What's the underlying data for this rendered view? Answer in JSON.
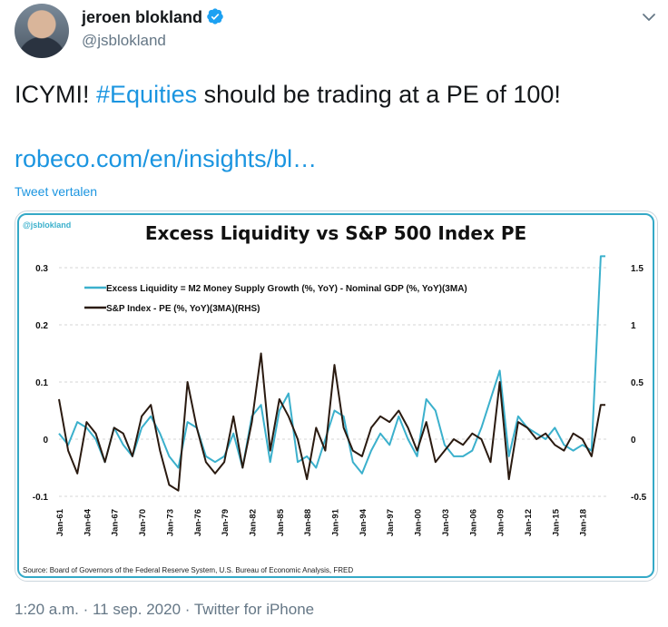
{
  "author": {
    "name": "jeroen blokland",
    "handle": "@jsblokland",
    "avatar_icon": "profile-photo",
    "verified_color": "#1da1f2"
  },
  "tweet": {
    "text_prefix": "ICYMI! ",
    "hashtag": "#Equities",
    "text_suffix": " should be trading at a PE of 100!",
    "link": "robeco.com/en/insights/bl…",
    "translate_label": "Tweet vertalen"
  },
  "meta": {
    "time": "1:20 a.m.",
    "separator1": " · ",
    "date": "11 sep. 2020",
    "separator2": " · ",
    "app": "Twitter for iPhone"
  },
  "chart_data": {
    "type": "line",
    "title": "Excess Liquidity vs S&P 500 Index PE",
    "watermark": "@jsblokland",
    "source": "Source: Board of Governors of the Federal Reserve System, U.S. Bureau of Economic Analysis, FRED",
    "x_ticks": [
      "Jan-61",
      "Jan-64",
      "Jan-67",
      "Jan-70",
      "Jan-73",
      "Jan-76",
      "Jan-79",
      "Jan-82",
      "Jan-85",
      "Jan-88",
      "Jan-91",
      "Jan-94",
      "Jan-97",
      "Jan-00",
      "Jan-03",
      "Jan-06",
      "Jan-09",
      "Jan-12",
      "Jan-15",
      "Jan-18"
    ],
    "x_range": [
      1961,
      2020.7
    ],
    "y_left": {
      "ticks": [
        "0.3",
        "0.2",
        "0.1",
        "0",
        "-0.1"
      ],
      "tick_values": [
        0.3,
        0.2,
        0.1,
        0,
        -0.1
      ],
      "range": [
        -0.1,
        0.3
      ]
    },
    "y_right": {
      "ticks": [
        "1.5",
        "1",
        "0.5",
        "0",
        "-0.5"
      ],
      "tick_values": [
        1.5,
        1,
        0.5,
        0,
        -0.5
      ],
      "range": [
        -0.5,
        1.5
      ]
    },
    "grid": "horizontal-dashed",
    "legend_position": "top-left",
    "series": [
      {
        "name": "Excess Liquidity = M2 Money Supply Growth (%, YoY) - Nominal GDP (%, YoY)(3MA)",
        "axis": "left",
        "color": "#3bb0cc",
        "x": [
          1961,
          1962,
          1963,
          1964,
          1965,
          1966,
          1967,
          1968,
          1969,
          1970,
          1971,
          1972,
          1973,
          1974,
          1975,
          1976,
          1977,
          1978,
          1979,
          1980,
          1981,
          1982,
          1983,
          1984,
          1985,
          1986,
          1987,
          1988,
          1989,
          1990,
          1991,
          1992,
          1993,
          1994,
          1995,
          1996,
          1997,
          1998,
          1999,
          2000,
          2001,
          2002,
          2003,
          2004,
          2005,
          2006,
          2007,
          2008,
          2009,
          2010,
          2011,
          2012,
          2013,
          2014,
          2015,
          2016,
          2017,
          2018,
          2019,
          2020,
          2020.5
        ],
        "y": [
          0.01,
          -0.01,
          0.03,
          0.02,
          0.0,
          -0.04,
          0.02,
          -0.01,
          -0.03,
          0.02,
          0.04,
          0.01,
          -0.03,
          -0.05,
          0.03,
          0.02,
          -0.03,
          -0.04,
          -0.03,
          0.01,
          -0.05,
          0.04,
          0.06,
          -0.04,
          0.05,
          0.08,
          -0.04,
          -0.03,
          -0.05,
          0.0,
          0.05,
          0.04,
          -0.04,
          -0.06,
          -0.02,
          0.01,
          -0.01,
          0.04,
          0.0,
          -0.03,
          0.07,
          0.05,
          -0.01,
          -0.03,
          -0.03,
          -0.02,
          0.02,
          0.07,
          0.12,
          -0.03,
          0.04,
          0.02,
          0.01,
          0.0,
          0.02,
          -0.01,
          -0.02,
          -0.01,
          -0.02,
          0.32,
          0.32
        ]
      },
      {
        "name": "S&P Index - PE (%, YoY)(3MA)(RHS)",
        "axis": "right",
        "color": "#2a1a10",
        "x": [
          1961,
          1962,
          1963,
          1964,
          1965,
          1966,
          1967,
          1968,
          1969,
          1970,
          1971,
          1972,
          1973,
          1974,
          1975,
          1976,
          1977,
          1978,
          1979,
          1980,
          1981,
          1982,
          1983,
          1984,
          1985,
          1986,
          1987,
          1988,
          1989,
          1990,
          1991,
          1992,
          1993,
          1994,
          1995,
          1996,
          1997,
          1998,
          1999,
          2000,
          2001,
          2002,
          2003,
          2004,
          2005,
          2006,
          2007,
          2008,
          2009,
          2010,
          2011,
          2012,
          2013,
          2014,
          2015,
          2016,
          2017,
          2018,
          2019,
          2020,
          2020.5
        ],
        "y": [
          0.35,
          -0.1,
          -0.3,
          0.15,
          0.05,
          -0.2,
          0.1,
          0.05,
          -0.15,
          0.2,
          0.3,
          -0.1,
          -0.4,
          -0.45,
          0.5,
          0.1,
          -0.2,
          -0.3,
          -0.2,
          0.2,
          -0.25,
          0.15,
          0.75,
          -0.1,
          0.35,
          0.2,
          0.0,
          -0.35,
          0.1,
          -0.1,
          0.65,
          0.1,
          -0.1,
          -0.15,
          0.1,
          0.2,
          0.15,
          0.25,
          0.1,
          -0.1,
          0.15,
          -0.2,
          -0.1,
          0.0,
          -0.05,
          0.05,
          0.0,
          -0.2,
          0.5,
          -0.35,
          0.15,
          0.1,
          0.0,
          0.05,
          -0.05,
          -0.1,
          0.05,
          0.0,
          -0.15,
          0.3,
          0.3
        ]
      }
    ]
  }
}
